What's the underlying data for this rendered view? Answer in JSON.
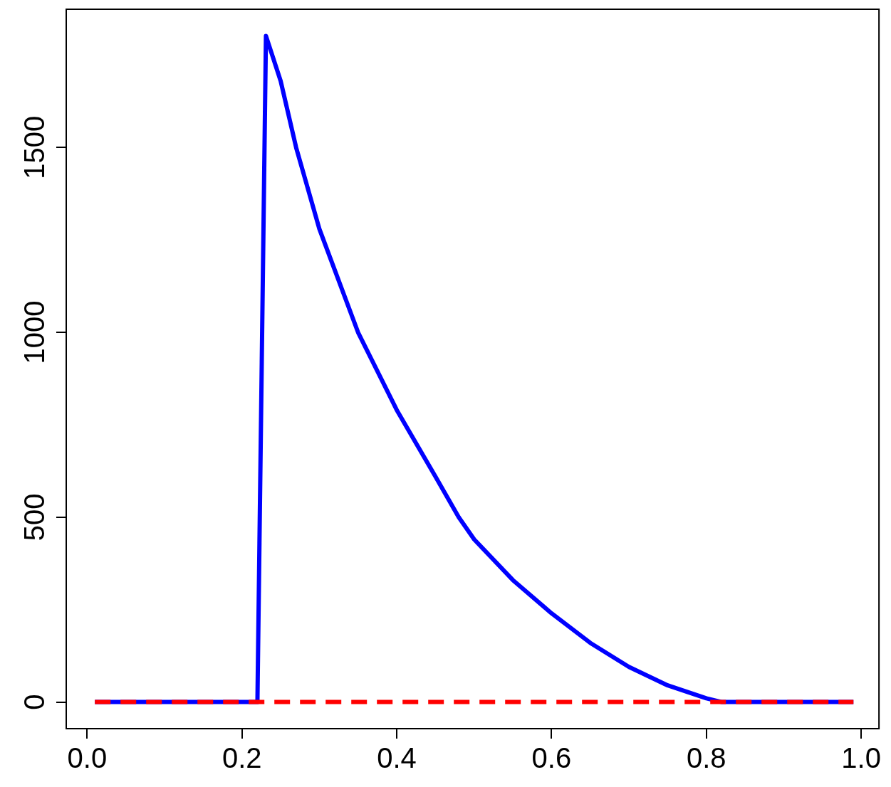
{
  "chart_data": {
    "type": "line",
    "xlim": [
      -0.027,
      1.023
    ],
    "ylim": [
      -72,
      1874
    ],
    "xticks": [
      {
        "value": 0,
        "label": "0.0"
      },
      0.2,
      0.4,
      0.6,
      0.8,
      {
        "value": 1,
        "label": "1.0"
      }
    ],
    "yticks": [
      0,
      500,
      1000,
      1500
    ],
    "grid": false,
    "marker": "none",
    "series": [
      {
        "color": "#0000ff",
        "line_style": "solid",
        "x": [
          0.01,
          0.22,
          0.231,
          0.25,
          0.27,
          0.3,
          0.35,
          0.4,
          0.45,
          0.48,
          0.5,
          0.55,
          0.6,
          0.65,
          0.7,
          0.75,
          0.8,
          0.82,
          0.99
        ],
        "values": [
          0,
          0,
          1802,
          1680,
          1500,
          1280,
          1000,
          790,
          610,
          500,
          440,
          330,
          240,
          160,
          95,
          45,
          10,
          0,
          0
        ]
      },
      {
        "color": "#ff0000",
        "line_style": "dashed",
        "x": [
          0.01,
          0.99
        ],
        "values": [
          0,
          0
        ]
      }
    ]
  }
}
